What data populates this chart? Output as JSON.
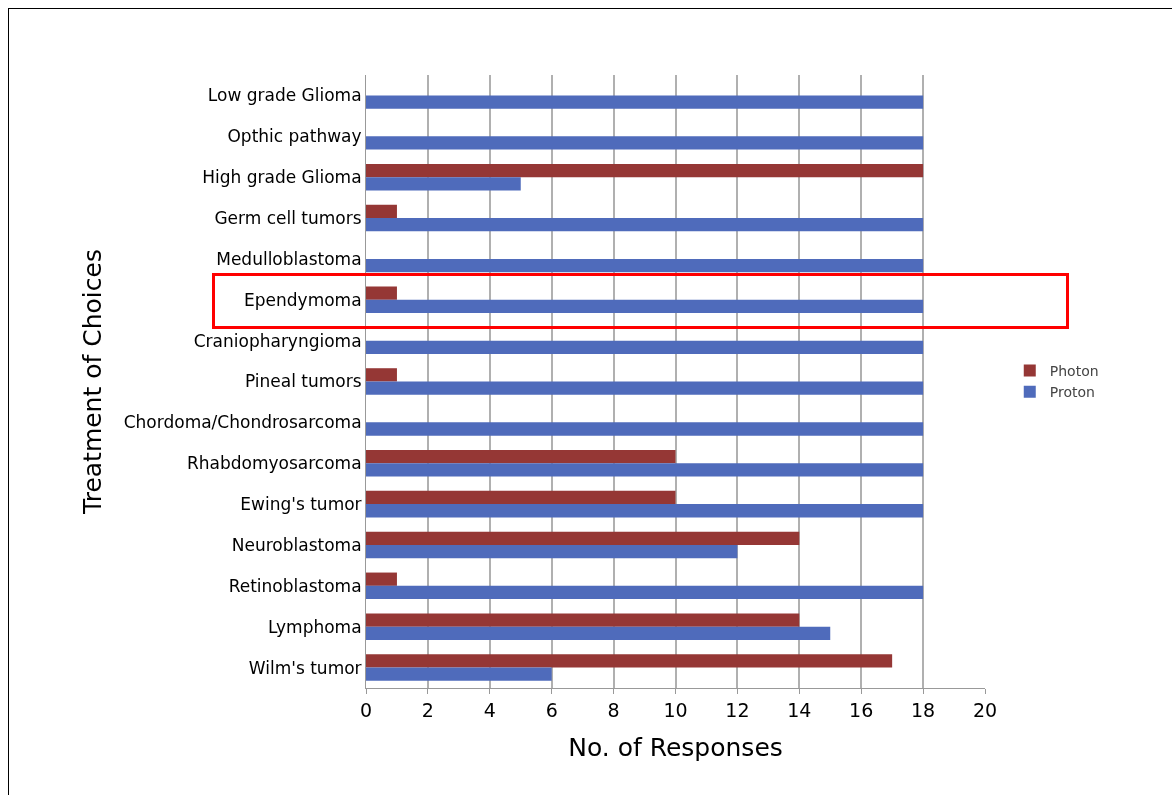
{
  "chart_data": {
    "type": "bar",
    "orientation": "horizontal",
    "xlabel": "No. of Responses",
    "ylabel": "Treatment of Choices",
    "categories": [
      "Low grade Glioma",
      "Opthic pathway",
      "High grade Glioma",
      "Germ cell tumors",
      "Medulloblastoma",
      "Ependymoma",
      "Craniopharyngioma",
      "Pineal tumors",
      "Chordoma/Chondrosarcoma",
      "Rhabdomyosarcoma",
      "Ewing's tumor",
      "Neuroblastoma",
      "Retinoblastoma",
      "Lymphoma",
      "Wilm's tumor"
    ],
    "series": [
      {
        "name": "Photon",
        "color": "#953735",
        "values": [
          0,
          0,
          18,
          1,
          0,
          1,
          0,
          1,
          0,
          10,
          10,
          14,
          1,
          14,
          17
        ]
      },
      {
        "name": "Proton",
        "color": "#4f6bbb",
        "values": [
          18,
          18,
          5,
          18,
          18,
          18,
          18,
          18,
          18,
          18,
          18,
          12,
          18,
          15,
          6
        ]
      }
    ],
    "xlim": [
      0,
      20
    ],
    "xticks": [
      0,
      2,
      4,
      6,
      8,
      10,
      12,
      14,
      16,
      18,
      20
    ],
    "grid": "x",
    "legend": "right"
  }
}
